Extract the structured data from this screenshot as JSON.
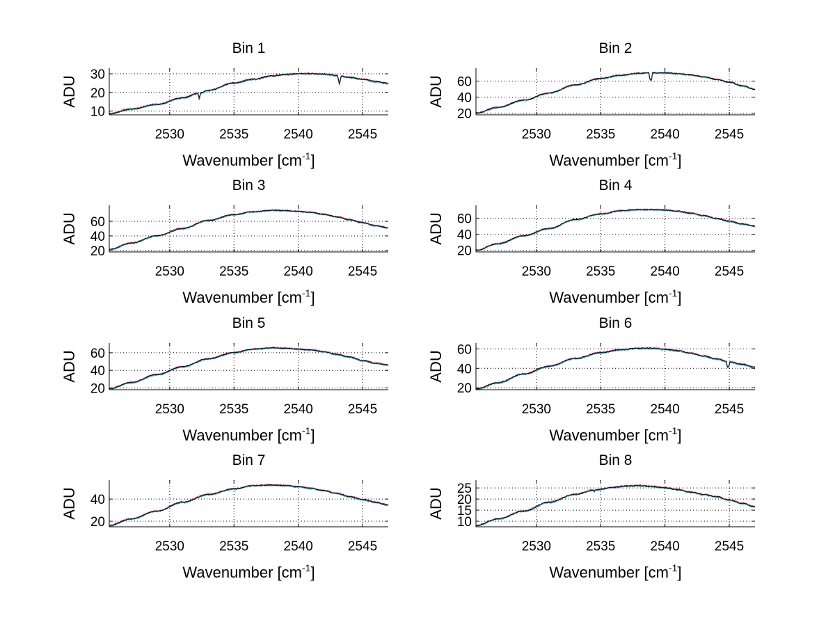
{
  "chart_data": [
    {
      "type": "line",
      "title": "Bin 1",
      "xlabel": "Wavenumber [cm",
      "xlabel_sup": "-1",
      "xlabel_end": "]",
      "ylabel": "ADU",
      "xlim": [
        2525.3,
        2547
      ],
      "ylim": [
        8,
        33
      ],
      "xticks": [
        2530,
        2535,
        2540,
        2545
      ],
      "yticks": [
        10,
        20,
        30
      ],
      "grid": true,
      "x": [
        2525.3,
        2527,
        2529,
        2531,
        2532.3,
        2533,
        2535,
        2536.5,
        2538,
        2539,
        2540,
        2541,
        2542,
        2543,
        2544,
        2545,
        2546,
        2547
      ],
      "y": [
        8.5,
        11,
        13.5,
        17,
        19.5,
        21,
        25,
        27,
        28.8,
        29.6,
        30,
        30,
        29.7,
        29,
        28,
        27,
        25.8,
        24.8
      ],
      "dips": [
        {
          "x": 2532.3,
          "y": 16
        },
        {
          "x": 2543.2,
          "y": 24
        }
      ],
      "series": [
        {
          "name": "1",
          "color": "#0000ff",
          "offset": 0
        },
        {
          "name": "2",
          "color": "#ff0000",
          "offset": 0.25
        },
        {
          "name": "3",
          "color": "#00bfbf",
          "offset": -0.25
        },
        {
          "name": "4",
          "color": "#000000",
          "offset": 0.1
        }
      ]
    },
    {
      "type": "line",
      "title": "Bin 2",
      "xlabel": "Wavenumber [cm",
      "xlabel_sup": "-1",
      "xlabel_end": "]",
      "ylabel": "ADU",
      "xlim": [
        2525.3,
        2547
      ],
      "ylim": [
        18,
        76
      ],
      "xticks": [
        2530,
        2535,
        2540,
        2545
      ],
      "yticks": [
        20,
        40,
        60
      ],
      "grid": true,
      "x": [
        2525.3,
        2527,
        2529,
        2531,
        2533,
        2535,
        2536.5,
        2538,
        2539,
        2540,
        2541,
        2542,
        2543,
        2544,
        2545,
        2546,
        2547
      ],
      "y": [
        20,
        27,
        36,
        45,
        55,
        63,
        67,
        69.5,
        70,
        70,
        69,
        67.5,
        65,
        62,
        58.5,
        54,
        49.5
      ],
      "dips": [
        {
          "x": 2538.9,
          "y": 60
        }
      ],
      "series": [
        {
          "name": "1",
          "color": "#0000ff",
          "offset": 0
        },
        {
          "name": "2",
          "color": "#ff0000",
          "offset": 0.5
        },
        {
          "name": "3",
          "color": "#00bfbf",
          "offset": -0.5
        },
        {
          "name": "4",
          "color": "#000000",
          "offset": 0.2
        }
      ]
    },
    {
      "type": "line",
      "title": "Bin 3",
      "xlabel": "Wavenumber [cm",
      "xlabel_sup": "-1",
      "xlabel_end": "]",
      "ylabel": "ADU",
      "xlim": [
        2525.3,
        2547
      ],
      "ylim": [
        18,
        82
      ],
      "xticks": [
        2530,
        2535,
        2540,
        2545
      ],
      "yticks": [
        20,
        40,
        60
      ],
      "grid": true,
      "x": [
        2525.3,
        2527,
        2529,
        2531,
        2533,
        2535,
        2536.5,
        2538,
        2539,
        2540,
        2541,
        2542,
        2543,
        2544,
        2545,
        2546,
        2547
      ],
      "y": [
        21,
        30,
        40,
        50,
        61,
        69,
        73,
        75,
        74.5,
        73.5,
        72,
        69.5,
        66,
        62,
        58,
        54,
        51
      ],
      "dips": [],
      "series": [
        {
          "name": "1",
          "color": "#0000ff",
          "offset": 0
        },
        {
          "name": "2",
          "color": "#ff0000",
          "offset": 0.5
        },
        {
          "name": "3",
          "color": "#00bfbf",
          "offset": -0.5
        },
        {
          "name": "4",
          "color": "#000000",
          "offset": 0.2
        }
      ]
    },
    {
      "type": "line",
      "title": "Bin 4",
      "xlabel": "Wavenumber [cm",
      "xlabel_sup": "-1",
      "xlabel_end": "]",
      "ylabel": "ADU",
      "xlim": [
        2525.3,
        2547
      ],
      "ylim": [
        18,
        76
      ],
      "xticks": [
        2530,
        2535,
        2540,
        2545
      ],
      "yticks": [
        20,
        40,
        60
      ],
      "grid": true,
      "x": [
        2525.3,
        2527,
        2529,
        2531,
        2533,
        2535,
        2536.5,
        2538,
        2539,
        2540,
        2541,
        2542,
        2543,
        2544,
        2545,
        2546,
        2547
      ],
      "y": [
        20,
        28,
        38,
        47,
        58,
        65,
        69,
        70.5,
        70.5,
        70,
        68.5,
        66,
        63,
        59.5,
        56,
        52.5,
        50
      ],
      "dips": [],
      "series": [
        {
          "name": "1",
          "color": "#0000ff",
          "offset": 0
        },
        {
          "name": "2",
          "color": "#ff0000",
          "offset": 0.5
        },
        {
          "name": "3",
          "color": "#00bfbf",
          "offset": -0.5
        },
        {
          "name": "4",
          "color": "#000000",
          "offset": 0.2
        }
      ]
    },
    {
      "type": "line",
      "title": "Bin 5",
      "xlabel": "Wavenumber [cm",
      "xlabel_sup": "-1",
      "xlabel_end": "]",
      "ylabel": "ADU",
      "xlim": [
        2525.3,
        2547
      ],
      "ylim": [
        18,
        71
      ],
      "xticks": [
        2530,
        2535,
        2540,
        2545
      ],
      "yticks": [
        20,
        40,
        60
      ],
      "grid": true,
      "x": [
        2525.3,
        2527,
        2529,
        2531,
        2533,
        2535,
        2536.5,
        2538,
        2539,
        2540,
        2541,
        2542,
        2543,
        2544,
        2545,
        2546,
        2547
      ],
      "y": [
        19,
        26,
        35,
        44,
        53,
        60,
        64,
        65.5,
        65,
        64,
        63,
        61,
        58,
        55,
        51,
        48,
        46
      ],
      "dips": [],
      "series": [
        {
          "name": "1",
          "color": "#0000ff",
          "offset": 0
        },
        {
          "name": "2",
          "color": "#ff0000",
          "offset": 0.5
        },
        {
          "name": "3",
          "color": "#00bfbf",
          "offset": -0.5
        },
        {
          "name": "4",
          "color": "#000000",
          "offset": 0.2
        }
      ]
    },
    {
      "type": "line",
      "title": "Bin 6",
      "xlabel": "Wavenumber [cm",
      "xlabel_sup": "-1",
      "xlabel_end": "]",
      "ylabel": "ADU",
      "xlim": [
        2525.3,
        2547
      ],
      "ylim": [
        18,
        66
      ],
      "xticks": [
        2530,
        2535,
        2540,
        2545
      ],
      "yticks": [
        20,
        40,
        60
      ],
      "grid": true,
      "x": [
        2525.3,
        2527,
        2529,
        2531,
        2533,
        2535,
        2536.5,
        2538,
        2539,
        2540,
        2541,
        2542,
        2543,
        2544,
        2545,
        2546,
        2547
      ],
      "y": [
        18.5,
        25,
        34,
        42,
        50,
        56,
        59,
        60.5,
        60.5,
        59.5,
        58,
        55.5,
        52.5,
        49.5,
        46.5,
        44,
        41
      ],
      "dips": [
        {
          "x": 2544.9,
          "y": 40
        }
      ],
      "series": [
        {
          "name": "1",
          "color": "#0000ff",
          "offset": 0
        },
        {
          "name": "2",
          "color": "#ff0000",
          "offset": 0.5
        },
        {
          "name": "3",
          "color": "#00bfbf",
          "offset": -0.5
        },
        {
          "name": "4",
          "color": "#000000",
          "offset": 0.2
        }
      ]
    },
    {
      "type": "line",
      "title": "Bin 7",
      "xlabel": "Wavenumber [cm",
      "xlabel_sup": "-1",
      "xlabel_end": "]",
      "ylabel": "ADU",
      "xlim": [
        2525.3,
        2547
      ],
      "ylim": [
        15,
        57
      ],
      "xticks": [
        2530,
        2535,
        2540,
        2545
      ],
      "yticks": [
        20,
        40
      ],
      "grid": true,
      "x": [
        2525.3,
        2527,
        2529,
        2531,
        2533,
        2535,
        2536.5,
        2538,
        2539,
        2540,
        2541,
        2542,
        2543,
        2544,
        2545,
        2546,
        2547
      ],
      "y": [
        16,
        22,
        29,
        37,
        44,
        49,
        52,
        52.5,
        52,
        51,
        49.5,
        47.5,
        45,
        42,
        39.5,
        37,
        34.5
      ],
      "dips": [],
      "series": [
        {
          "name": "1",
          "color": "#0000ff",
          "offset": 0
        },
        {
          "name": "2",
          "color": "#ff0000",
          "offset": 0.4
        },
        {
          "name": "3",
          "color": "#00bfbf",
          "offset": -0.4
        },
        {
          "name": "4",
          "color": "#000000",
          "offset": 0.15
        }
      ]
    },
    {
      "type": "line",
      "title": "Bin 8",
      "xlabel": "Wavenumber [cm",
      "xlabel_sup": "-1",
      "xlabel_end": "]",
      "ylabel": "ADU",
      "xlim": [
        2525.3,
        2547
      ],
      "ylim": [
        7.5,
        28.5
      ],
      "xticks": [
        2530,
        2535,
        2540,
        2545
      ],
      "yticks": [
        10,
        15,
        20,
        25
      ],
      "grid": true,
      "x": [
        2525.3,
        2527,
        2529,
        2531,
        2533,
        2534.5,
        2536,
        2537,
        2538,
        2539,
        2540,
        2541,
        2542,
        2543,
        2544,
        2545,
        2546,
        2547
      ],
      "y": [
        8,
        11,
        14.5,
        18.5,
        22,
        24,
        25.2,
        25.8,
        26,
        25.6,
        25,
        24.2,
        23,
        22,
        21,
        19.5,
        18,
        16.5
      ],
      "dips": [
        {
          "x": 2534.5,
          "y": 22.5
        }
      ],
      "series": [
        {
          "name": "1",
          "color": "#0000ff",
          "offset": 0
        },
        {
          "name": "2",
          "color": "#ff0000",
          "offset": 0.2
        },
        {
          "name": "3",
          "color": "#00bfbf",
          "offset": -0.2
        },
        {
          "name": "4",
          "color": "#000000",
          "offset": 0.08
        }
      ]
    }
  ]
}
